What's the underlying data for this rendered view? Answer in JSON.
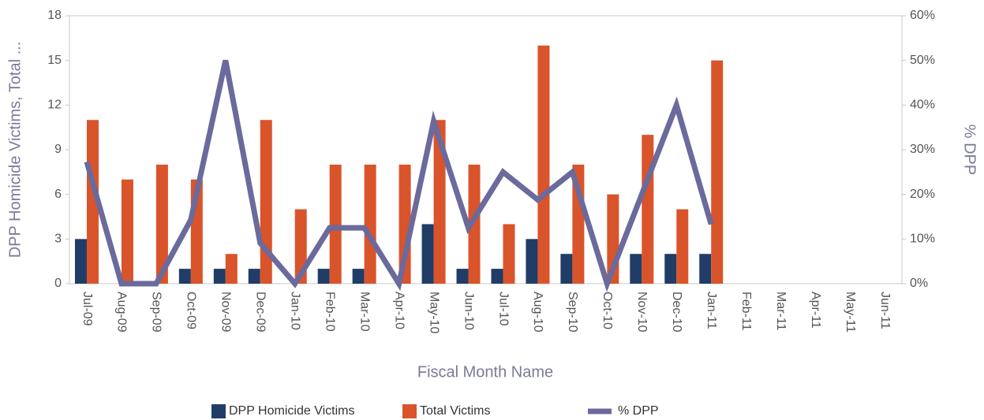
{
  "chart_data": {
    "type": "bar-line",
    "x_label": "Fiscal Month Name",
    "y_label": "DPP Homicide Victims, Total ...",
    "y2_label": "% DPP",
    "categories": [
      "Jul-09",
      "Aug-09",
      "Sep-09",
      "Oct-09",
      "Nov-09",
      "Dec-09",
      "Jan-10",
      "Feb-10",
      "Mar-10",
      "Apr-10",
      "May-10",
      "Jun-10",
      "Jul-10",
      "Aug-10",
      "Sep-10",
      "Oct-10",
      "Nov-10",
      "Dec-10",
      "Jan-11",
      "Feb-11",
      "Mar-11",
      "Apr-11",
      "May-11",
      "Jun-11"
    ],
    "series": [
      {
        "name": "DPP Homicide Victims",
        "type": "bar",
        "color": "#1f3d66",
        "values": [
          3,
          0,
          0,
          1,
          1,
          1,
          0,
          1,
          1,
          0,
          4,
          1,
          1,
          3,
          2,
          0,
          2,
          2,
          2,
          null,
          null,
          null,
          null,
          null
        ]
      },
      {
        "name": "Total Victims",
        "type": "bar",
        "color": "#d9542b",
        "values": [
          11,
          7,
          8,
          7,
          2,
          11,
          5,
          8,
          8,
          8,
          11,
          8,
          4,
          16,
          8,
          6,
          10,
          5,
          15,
          null,
          null,
          null,
          null,
          null
        ]
      },
      {
        "name": "% DPP",
        "type": "line",
        "axis": "y2",
        "color": "#6a6a9c",
        "values": [
          27.3,
          0,
          0,
          14.3,
          50,
          9.1,
          0,
          12.5,
          12.5,
          0,
          36.4,
          12.5,
          25,
          18.8,
          25,
          0,
          20,
          40,
          13.3,
          null,
          null,
          null,
          null,
          null
        ]
      }
    ],
    "ylim": [
      0,
      18
    ],
    "yticks": [
      0,
      3,
      6,
      9,
      12,
      15,
      18
    ],
    "y2lim": [
      0,
      60
    ],
    "y2ticks": [
      {
        "value": 0,
        "label": "0%"
      },
      {
        "value": 10,
        "label": "10%"
      },
      {
        "value": 20,
        "label": "20%"
      },
      {
        "value": 30,
        "label": "30%"
      },
      {
        "value": 40,
        "label": "40%"
      },
      {
        "value": 50,
        "label": "50%"
      },
      {
        "value": 60,
        "label": "60%"
      }
    ],
    "grid": false
  }
}
